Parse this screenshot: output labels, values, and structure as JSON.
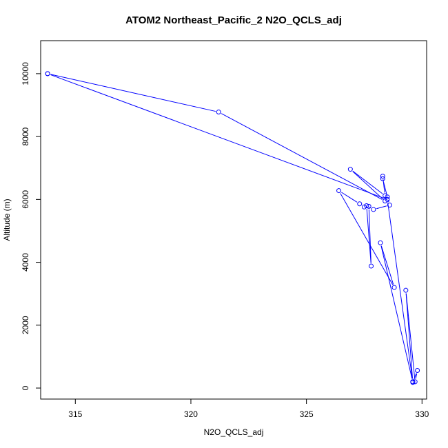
{
  "chart_data": {
    "type": "line",
    "title": "ATOM2 Northeast_Pacific_2 N2O_QCLS_adj",
    "xlabel": "N2O_QCLS_adj",
    "ylabel": "Altitude (m)",
    "xlim": [
      313.5,
      330.2
    ],
    "ylim": [
      -350,
      11050
    ],
    "xticks": [
      315,
      320,
      325,
      330
    ],
    "yticks": [
      0,
      2000,
      4000,
      6000,
      8000,
      10000
    ],
    "xtick_labels": [
      "315",
      "320",
      "325",
      "330"
    ],
    "ytick_labels": [
      "0",
      "2000",
      "4000",
      "6000",
      "8000",
      "10000"
    ],
    "grid": false,
    "legend": "none",
    "series": [
      {
        "color": "#0000ff",
        "marker": "open-circle",
        "x": [
          313.8,
          321.2,
          328.4,
          326.9,
          328.4,
          328.3,
          328.3,
          328.5,
          328.6,
          327.9,
          327.6,
          327.8,
          327.7,
          327.5,
          327.3,
          326.4,
          328.8,
          328.2,
          329.6,
          329.3,
          329.7,
          329.8,
          329.6,
          329.6,
          328.5,
          313.8
        ],
        "y": [
          10000,
          8780,
          5950,
          6960,
          6120,
          6740,
          6660,
          6080,
          5820,
          5680,
          5800,
          3880,
          5780,
          5760,
          5860,
          6280,
          3200,
          4620,
          200,
          3110,
          200,
          560,
          180,
          200,
          6000,
          10000
        ]
      }
    ]
  }
}
